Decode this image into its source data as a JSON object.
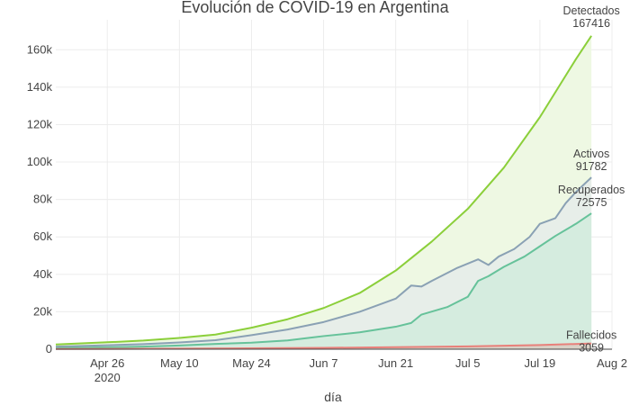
{
  "chart_data": {
    "type": "area",
    "title": "Evolución de COVID-19 en Argentina",
    "xlabel": "día",
    "ylabel": "",
    "x_range": [
      "2020-04-16",
      "2020-08-02"
    ],
    "ylim": [
      0,
      176000
    ],
    "grid": true,
    "x_ticks": [
      {
        "date": "2020-04-26",
        "label": "Apr 26",
        "sublabel": "2020"
      },
      {
        "date": "2020-05-10",
        "label": "May 10",
        "sublabel": ""
      },
      {
        "date": "2020-05-24",
        "label": "May 24",
        "sublabel": ""
      },
      {
        "date": "2020-06-07",
        "label": "Jun 7",
        "sublabel": ""
      },
      {
        "date": "2020-06-21",
        "label": "Jun 21",
        "sublabel": ""
      },
      {
        "date": "2020-07-05",
        "label": "Jul 5",
        "sublabel": ""
      },
      {
        "date": "2020-07-19",
        "label": "Jul 19",
        "sublabel": ""
      },
      {
        "date": "2020-08-02",
        "label": "Aug 2",
        "sublabel": ""
      }
    ],
    "y_ticks": [
      {
        "value": 0,
        "label": "0"
      },
      {
        "value": 20000,
        "label": "20k"
      },
      {
        "value": 40000,
        "label": "40k"
      },
      {
        "value": 60000,
        "label": "60k"
      },
      {
        "value": 80000,
        "label": "80k"
      },
      {
        "value": 100000,
        "label": "100k"
      },
      {
        "value": 120000,
        "label": "120k"
      },
      {
        "value": 140000,
        "label": "140k"
      },
      {
        "value": 160000,
        "label": "160k"
      }
    ],
    "series": [
      {
        "name": "Detectados",
        "color": "#8bcf3a",
        "fill": "#eef8e3",
        "points": [
          [
            "2020-04-16",
            2500
          ],
          [
            "2020-04-26",
            3700
          ],
          [
            "2020-05-03",
            4600
          ],
          [
            "2020-05-10",
            6000
          ],
          [
            "2020-05-17",
            7800
          ],
          [
            "2020-05-24",
            11500
          ],
          [
            "2020-05-31",
            16000
          ],
          [
            "2020-06-07",
            22000
          ],
          [
            "2020-06-14",
            30000
          ],
          [
            "2020-06-21",
            42000
          ],
          [
            "2020-06-28",
            57500
          ],
          [
            "2020-07-05",
            75000
          ],
          [
            "2020-07-12",
            97000
          ],
          [
            "2020-07-19",
            124000
          ],
          [
            "2020-07-26",
            155000
          ],
          [
            "2020-07-29",
            167416
          ]
        ]
      },
      {
        "name": "Activos",
        "color": "#8aa1b4",
        "fill": "#e7eee9",
        "points": [
          [
            "2020-04-16",
            1400
          ],
          [
            "2020-04-26",
            2100
          ],
          [
            "2020-05-03",
            2700
          ],
          [
            "2020-05-10",
            3600
          ],
          [
            "2020-05-17",
            4800
          ],
          [
            "2020-05-24",
            7500
          ],
          [
            "2020-05-31",
            10500
          ],
          [
            "2020-06-07",
            14500
          ],
          [
            "2020-06-14",
            20000
          ],
          [
            "2020-06-21",
            27000
          ],
          [
            "2020-06-24",
            34000
          ],
          [
            "2020-06-26",
            33500
          ],
          [
            "2020-06-28",
            36500
          ],
          [
            "2020-07-03",
            43500
          ],
          [
            "2020-07-07",
            48000
          ],
          [
            "2020-07-09",
            45000
          ],
          [
            "2020-07-11",
            49500
          ],
          [
            "2020-07-14",
            53500
          ],
          [
            "2020-07-17",
            60000
          ],
          [
            "2020-07-19",
            67000
          ],
          [
            "2020-07-22",
            70000
          ],
          [
            "2020-07-24",
            78000
          ],
          [
            "2020-07-26",
            84000
          ],
          [
            "2020-07-29",
            91782
          ]
        ]
      },
      {
        "name": "Recuperados",
        "color": "#66c29a",
        "fill": "#d5ecdf",
        "points": [
          [
            "2020-04-16",
            600
          ],
          [
            "2020-04-26",
            1000
          ],
          [
            "2020-05-03",
            1400
          ],
          [
            "2020-05-10",
            2000
          ],
          [
            "2020-05-17",
            2800
          ],
          [
            "2020-05-24",
            3500
          ],
          [
            "2020-05-31",
            4700
          ],
          [
            "2020-06-04",
            6000
          ],
          [
            "2020-06-07",
            7000
          ],
          [
            "2020-06-14",
            9000
          ],
          [
            "2020-06-21",
            12000
          ],
          [
            "2020-06-24",
            14000
          ],
          [
            "2020-06-26",
            18500
          ],
          [
            "2020-07-01",
            22500
          ],
          [
            "2020-07-05",
            28000
          ],
          [
            "2020-07-07",
            36500
          ],
          [
            "2020-07-09",
            39000
          ],
          [
            "2020-07-12",
            44000
          ],
          [
            "2020-07-16",
            49500
          ],
          [
            "2020-07-19",
            55000
          ],
          [
            "2020-07-22",
            60500
          ],
          [
            "2020-07-26",
            67000
          ],
          [
            "2020-07-29",
            72575
          ]
        ]
      },
      {
        "name": "Fallecidos",
        "color": "#e8807a",
        "fill": "#e8807a",
        "points": [
          [
            "2020-04-16",
            100
          ],
          [
            "2020-05-10",
            300
          ],
          [
            "2020-06-07",
            700
          ],
          [
            "2020-07-05",
            1500
          ],
          [
            "2020-07-19",
            2200
          ],
          [
            "2020-07-29",
            3059
          ]
        ]
      }
    ],
    "annotations": [
      {
        "series": "Detectados",
        "name": "Detectados",
        "value": "167416"
      },
      {
        "series": "Activos",
        "name": "Activos",
        "value": "91782"
      },
      {
        "series": "Recuperados",
        "name": "Recuperados",
        "value": "72575"
      },
      {
        "series": "Fallecidos",
        "name": "Fallecidos",
        "value": "3059"
      }
    ]
  }
}
